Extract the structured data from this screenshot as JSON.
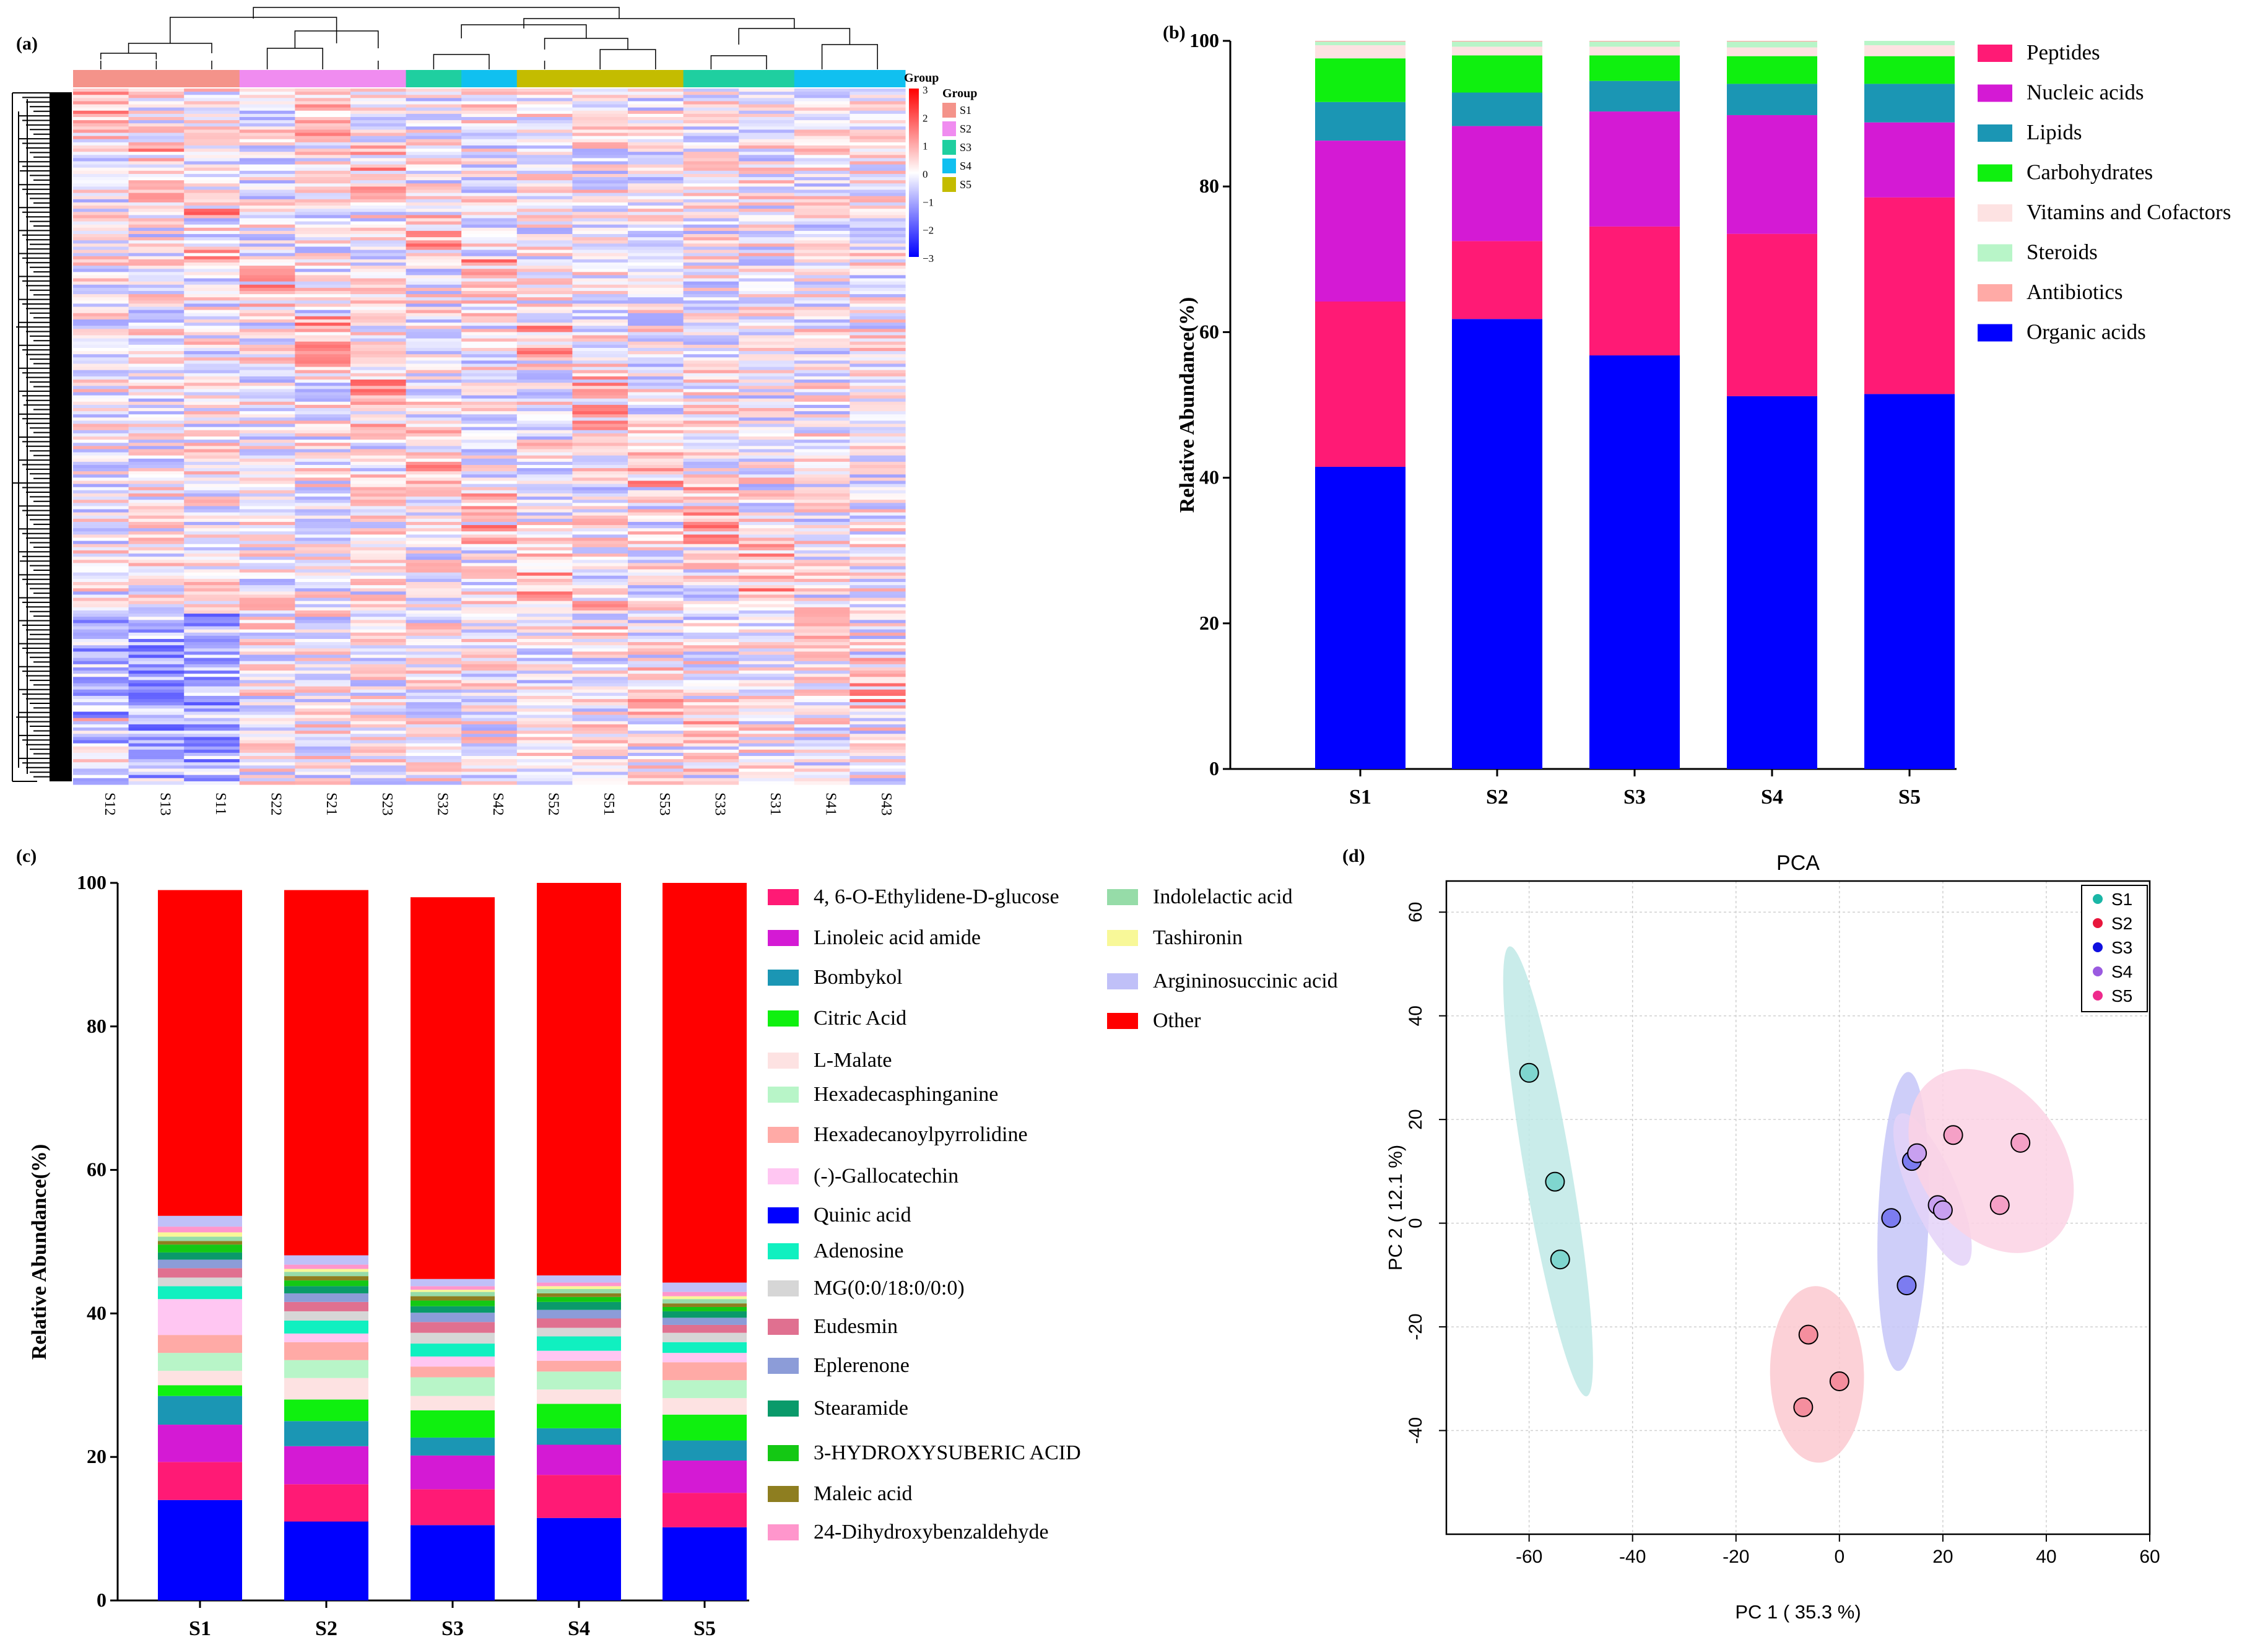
{
  "panels": {
    "a_label": "(a)",
    "b_label": "(b)",
    "c_label": "(c)",
    "d_label": "(d)"
  },
  "colors": {
    "peptides": "#ff1a75",
    "nucleic": "#d41ad4",
    "lipids": "#1b96b4",
    "carbs": "#0ff00f",
    "vitamins": "#fde2e2",
    "steroids": "#b8f5c8",
    "antibiotics": "#ffaaa6",
    "organic": "#0000ff",
    "other": "#ff0000"
  },
  "chart_data": [
    {
      "type": "heatmap",
      "samples": [
        "S12",
        "S13",
        "S11",
        "S22",
        "S21",
        "S23",
        "S32",
        "S42",
        "S52",
        "S51",
        "S53",
        "S33",
        "S31",
        "S41",
        "S43"
      ],
      "groups": [
        "S1",
        "S2",
        "S3",
        "S4",
        "S5"
      ],
      "group_colors": [
        "#f4938a",
        "#f08cf0",
        "#1fcfa0",
        "#10c0f0",
        "#c4bc00"
      ],
      "sample_groups": [
        "S1",
        "S1",
        "S1",
        "S2",
        "S2",
        "S2",
        "S3",
        "S4",
        "S5",
        "S5",
        "S5",
        "S3",
        "S3",
        "S4",
        "S4"
      ],
      "legend_title": "Group",
      "colorbar_ticks": [
        "3",
        "2",
        "1",
        "0",
        "−1",
        "−2",
        "−3"
      ],
      "colorbar_range": [
        -3,
        3
      ]
    },
    {
      "type": "bar",
      "stacked": true,
      "categories": [
        "S1",
        "S2",
        "S3",
        "S4",
        "S5"
      ],
      "ylabel": "Relative Abundance(%)",
      "ylim": [
        0,
        100
      ],
      "yticks": [
        "0",
        "20",
        "40",
        "60",
        "80",
        "100"
      ],
      "series": [
        {
          "name": "Organic acids",
          "color": "#0000ff",
          "values": [
            41.5,
            61.8,
            56.8,
            51.2,
            51.5
          ]
        },
        {
          "name": "Peptides",
          "color": "#ff1a75",
          "values": [
            22.7,
            10.7,
            17.7,
            22.3,
            27.0
          ]
        },
        {
          "name": "Nucleic acids",
          "color": "#d41ad4",
          "values": [
            22.1,
            15.8,
            15.8,
            16.3,
            10.3
          ]
        },
        {
          "name": "Lipids",
          "color": "#1b96b4",
          "values": [
            5.3,
            4.6,
            4.2,
            4.3,
            5.3
          ]
        },
        {
          "name": "Carbohydrates",
          "color": "#0ff00f",
          "values": [
            6.0,
            5.1,
            3.5,
            3.8,
            3.8
          ]
        },
        {
          "name": "Vitamins and Cofactors",
          "color": "#fde2e2",
          "values": [
            1.8,
            1.2,
            1.2,
            1.2,
            1.5
          ]
        },
        {
          "name": "Steroids",
          "color": "#b8f5c8",
          "values": [
            0.5,
            0.7,
            0.7,
            0.8,
            0.6
          ]
        },
        {
          "name": "Antibiotics",
          "color": "#ffaaa6",
          "values": [
            0.1,
            0.1,
            0.1,
            0.1,
            0.0
          ]
        }
      ],
      "legend_order": [
        "Peptides",
        "Nucleic acids",
        "Lipids",
        "Carbohydrates",
        "Vitamins and Cofactors",
        "Steroids",
        "Antibiotics",
        "Organic acids"
      ]
    },
    {
      "type": "bar",
      "stacked": true,
      "categories": [
        "S1",
        "S2",
        "S3",
        "S4",
        "S5"
      ],
      "ylabel": "Relative Abundance(%)",
      "ylim": [
        0,
        100
      ],
      "yticks": [
        "0",
        "20",
        "40",
        "60",
        "80",
        "100"
      ],
      "series": [
        {
          "name": "Quinic acid",
          "color": "#0000ff",
          "values": [
            14.0,
            11.0,
            10.5,
            11.5,
            10.2
          ]
        },
        {
          "name": "4, 6-O-Ethylidene-D-glucose",
          "color": "#ff1a75",
          "values": [
            5.3,
            5.2,
            5.0,
            6.0,
            4.8
          ]
        },
        {
          "name": "Linoleic acid amide",
          "color": "#d41ad4",
          "values": [
            5.2,
            5.3,
            4.7,
            4.2,
            4.5
          ]
        },
        {
          "name": "Bombykol",
          "color": "#1b96b4",
          "values": [
            4.0,
            3.5,
            2.5,
            2.3,
            2.8
          ]
        },
        {
          "name": "Citric Acid",
          "color": "#0ff00f",
          "values": [
            1.5,
            3.0,
            3.8,
            3.4,
            3.6
          ]
        },
        {
          "name": "L-Malate",
          "color": "#fde2e2",
          "values": [
            2.0,
            3.0,
            2.0,
            2.0,
            2.3
          ]
        },
        {
          "name": "Hexadecasphinganine",
          "color": "#b8f5c8",
          "values": [
            2.5,
            2.5,
            2.6,
            2.5,
            2.5
          ]
        },
        {
          "name": "Hexadecanoylpyrrolidine",
          "color": "#ffaaa6",
          "values": [
            2.5,
            2.5,
            1.5,
            1.5,
            2.5
          ]
        },
        {
          "name": "(-)-Gallocatechin",
          "color": "#ffc6f2",
          "values": [
            5.0,
            1.2,
            1.4,
            1.4,
            1.3
          ]
        },
        {
          "name": "Adenosine",
          "color": "#10f0c0",
          "values": [
            1.8,
            1.8,
            1.8,
            2.0,
            1.5
          ]
        },
        {
          "name": "MG(0:0/18:0/0:0)",
          "color": "#d6d6d6",
          "values": [
            1.2,
            1.3,
            1.5,
            1.2,
            1.3
          ]
        },
        {
          "name": "Eudesmin",
          "color": "#e07090",
          "values": [
            1.3,
            1.3,
            1.5,
            1.3,
            1.1
          ]
        },
        {
          "name": "Eplerenone",
          "color": "#8c9cd8",
          "values": [
            1.2,
            1.2,
            1.3,
            1.2,
            1.0
          ]
        },
        {
          "name": "Stearamide",
          "color": "#0a9a6a",
          "values": [
            1.0,
            1.0,
            0.9,
            1.1,
            0.9
          ]
        },
        {
          "name": "3-HYDROXYSUBERIC ACID",
          "color": "#14c814",
          "values": [
            1.1,
            0.8,
            0.8,
            0.7,
            0.6
          ]
        },
        {
          "name": "Maleic acid",
          "color": "#8e7e20",
          "values": [
            0.5,
            0.6,
            0.6,
            0.5,
            0.5
          ]
        },
        {
          "name": "Indolelactic acid",
          "color": "#96dca8",
          "values": [
            0.6,
            0.6,
            0.6,
            0.6,
            0.6
          ]
        },
        {
          "name": "Tashironin",
          "color": "#f8f898",
          "values": [
            0.6,
            0.4,
            0.3,
            0.4,
            0.4
          ]
        },
        {
          "name": "24-Dihydroxybenzaldehyde",
          "color": "#ff96cc",
          "values": [
            0.8,
            0.6,
            0.5,
            0.5,
            0.6
          ]
        },
        {
          "name": "Argininosuccinic acid",
          "color": "#c0c0f8",
          "values": [
            1.5,
            1.3,
            1.0,
            1.0,
            1.3
          ]
        },
        {
          "name": "Other",
          "color": "#ff0000",
          "values": [
            45.4,
            50.9,
            53.2,
            54.7,
            55.7
          ]
        }
      ],
      "legend_col1": [
        "4, 6-O-Ethylidene-D-glucose",
        "Linoleic acid amide",
        "Bombykol",
        "Citric Acid",
        "L-Malate",
        "Hexadecasphinganine",
        "Hexadecanoylpyrrolidine",
        "(-)-Gallocatechin",
        "Quinic acid",
        "Adenosine",
        "MG(0:0/18:0/0:0)",
        "Eudesmin",
        "Eplerenone",
        "Stearamide",
        "3-HYDROXYSUBERIC ACID",
        "Maleic acid",
        "24-Dihydroxybenzaldehyde"
      ],
      "legend_col2": [
        "Indolelactic acid",
        "Tashironin",
        "Argininosuccinic acid",
        "Other"
      ]
    },
    {
      "type": "scatter",
      "title": "PCA",
      "xlabel": "PC 1 ( 35.3 %)",
      "ylabel": "PC 2 ( 12.1 %)",
      "xlim": [
        -76,
        60
      ],
      "ylim": [
        -60,
        66
      ],
      "xticks": [
        -60,
        -40,
        -20,
        0,
        20,
        40,
        60
      ],
      "yticks": [
        -40,
        -20,
        0,
        20,
        40,
        60
      ],
      "series": [
        {
          "name": "S1",
          "color": "#1ab6a6",
          "fill": "#7fd6cf",
          "ellipse_fill": "#bfe9e6",
          "points": [
            [
              -60,
              29
            ],
            [
              -55,
              8
            ],
            [
              -54,
              -7
            ]
          ]
        },
        {
          "name": "S2",
          "color": "#e8163c",
          "fill": "#f58e9e",
          "ellipse_fill": "#fbc9d0",
          "points": [
            [
              -6,
              -21.5
            ],
            [
              0,
              -30.5
            ],
            [
              -7,
              -35.5
            ]
          ]
        },
        {
          "name": "S3",
          "color": "#1010e0",
          "fill": "#7c7cf0",
          "ellipse_fill": "#c6c6f8",
          "points": [
            [
              10,
              1
            ],
            [
              14,
              12
            ],
            [
              13,
              -12
            ]
          ]
        },
        {
          "name": "S4",
          "color": "#9a5ae0",
          "fill": "#c8a0f0",
          "ellipse_fill": "#e4d2f8",
          "points": [
            [
              15,
              13.5
            ],
            [
              19,
              3.5
            ],
            [
              20,
              2.5
            ]
          ]
        },
        {
          "name": "S5",
          "color": "#ee2a8c",
          "fill": "#f5a0c6",
          "ellipse_fill": "#fbd2e4",
          "points": [
            [
              22,
              17
            ],
            [
              35,
              15.5
            ],
            [
              31,
              3.5
            ]
          ]
        }
      ]
    }
  ]
}
